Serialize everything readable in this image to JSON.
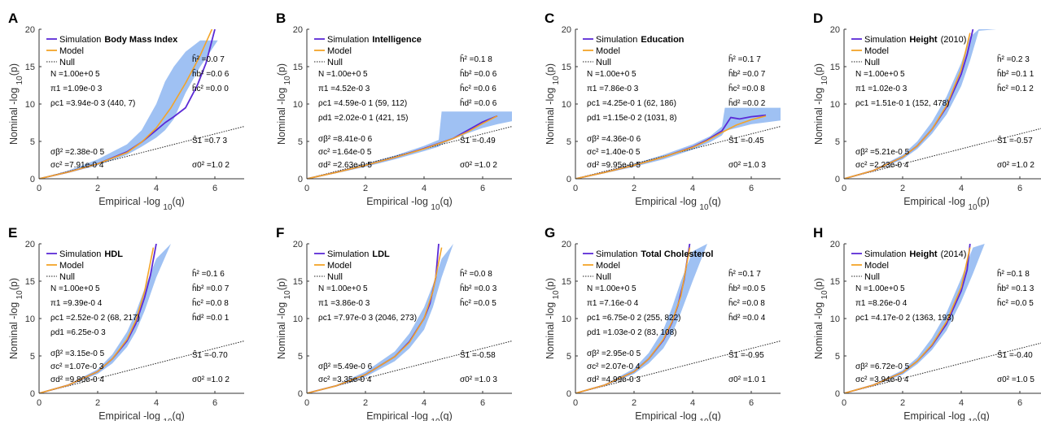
{
  "chart_data": [
    {
      "letter": "A",
      "type": "line",
      "xlim": [
        0,
        7
      ],
      "ylim": [
        0,
        20
      ],
      "xticks": [
        0,
        2,
        4,
        6
      ],
      "yticks": [
        0,
        5,
        10,
        15,
        20
      ],
      "xlabel": "Empirical -log 10(q)",
      "ylabel": "Nominal -log 10(p)",
      "legend": {
        "simulation": "Simulation",
        "trait": "Body Mass Index",
        "trait_suffix": "",
        "model": "Model",
        "null": "Null"
      },
      "left_stats": [
        "N =1.00e+0 5",
        "π1 =1.09e-0 3",
        "ρc1 =3.94e-0 3 (440, 7)",
        "σβ² =2.38e-0 5",
        "σc² =7.91e-0 4"
      ],
      "right_stats": [
        "ĥ² =0.0 7",
        "ĥb² =0.0 6",
        "ĥc² =0.0 0",
        "Ŝ1 =0.7 3",
        "σ0² =1.0 2"
      ],
      "band": {
        "x": [
          0,
          1,
          2,
          3,
          3.5,
          4,
          4.3,
          4.6,
          5,
          5.5,
          6.1,
          6.5,
          6.9
        ],
        "lower": [
          0,
          0.8,
          1.8,
          3.2,
          4.3,
          5.5,
          6.5,
          8,
          11.5,
          15,
          18.5,
          18.5,
          18.5
        ],
        "upper": [
          0,
          1.1,
          2.6,
          4.6,
          6.5,
          10,
          13,
          15,
          17,
          18.5,
          18.5,
          18.5,
          18.5
        ]
      },
      "simulation": {
        "x": [
          0,
          1,
          2,
          3,
          3.5,
          4,
          4.3,
          4.6,
          5,
          5.2,
          5.4,
          5.7,
          6
        ],
        "y": [
          0,
          0.9,
          2.0,
          3.6,
          4.9,
          6.5,
          7.5,
          8.3,
          9.5,
          11,
          12.5,
          15.5,
          20
        ]
      },
      "model": {
        "x": [
          0,
          1,
          2,
          3,
          3.5,
          4,
          4.5,
          5,
          5.5,
          5.9
        ],
        "y": [
          0,
          0.9,
          2.0,
          3.5,
          4.9,
          6.8,
          9.5,
          12.8,
          16.5,
          20
        ]
      }
    },
    {
      "letter": "B",
      "type": "line",
      "xlim": [
        0,
        7
      ],
      "ylim": [
        0,
        20
      ],
      "xticks": [
        0,
        2,
        4,
        6
      ],
      "yticks": [
        0,
        5,
        10,
        15,
        20
      ],
      "xlabel": "Empirical -log 10(q)",
      "ylabel": "Nominal -log 10(p)",
      "legend": {
        "simulation": "Simulation",
        "trait": "Intelligence",
        "trait_suffix": "",
        "model": "Model",
        "null": "Null"
      },
      "left_stats": [
        "N =1.00e+0 5",
        "π1 =4.52e-0 3",
        "ρc1 =4.59e-0 1 (59, 112)",
        "ρd1 =2.02e-0 1 (421, 15)",
        "σβ² =8.41e-0 6",
        "σc² =1.64e-0 5",
        "σd² =2.63e-0 5"
      ],
      "right_stats": [
        "ĥ² =0.1 8",
        "ĥb² =0.0 6",
        "ĥc² =0.0 6",
        "ĥd² =0.0 6",
        "Ŝ1 =-0.49",
        "σ0² =1.0 2"
      ],
      "band": {
        "x": [
          0,
          1,
          2,
          3,
          4,
          4.5,
          4.6,
          5,
          5.5,
          6,
          6.5,
          7
        ],
        "lower": [
          0,
          0.75,
          1.6,
          2.6,
          3.7,
          4.3,
          4.6,
          5.3,
          6.1,
          6.8,
          7.3,
          7.7
        ],
        "upper": [
          0,
          0.95,
          2.0,
          3.1,
          4.4,
          5.2,
          9.0,
          9.0,
          9.0,
          9.0,
          9.0,
          9.0
        ]
      },
      "simulation": {
        "x": [
          0,
          1,
          2,
          3,
          4,
          5,
          5.5,
          6,
          6.5
        ],
        "y": [
          0,
          0.85,
          1.8,
          2.85,
          4.05,
          5.4,
          6.5,
          7.6,
          8.4
        ]
      },
      "model": {
        "x": [
          0,
          1,
          2,
          3,
          4,
          5,
          5.5,
          6,
          6.5
        ],
        "y": [
          0,
          0.85,
          1.8,
          2.85,
          4.0,
          5.4,
          6.3,
          7.4,
          8.4
        ]
      }
    },
    {
      "letter": "C",
      "type": "line",
      "xlim": [
        0,
        7
      ],
      "ylim": [
        0,
        20
      ],
      "xticks": [
        0,
        2,
        4,
        6
      ],
      "yticks": [
        0,
        5,
        10,
        15,
        20
      ],
      "xlabel": "Empirical -log 10(q)",
      "ylabel": "Nominal -log 10(p)",
      "legend": {
        "simulation": "Simulation",
        "trait": "Education",
        "trait_suffix": "",
        "model": "Model",
        "null": "Null"
      },
      "left_stats": [
        "N =1.00e+0 5",
        "π1 =7.86e-0 3",
        "ρc1 =4.25e-0 1 (62, 186)",
        "ρd1 =1.15e-0 2 (1031, 8)",
        "σβ² =4.36e-0 6",
        "σc² =1.40e-0 5",
        "σd² =9.95e-0 5"
      ],
      "right_stats": [
        "ĥ² =0.1 7",
        "ĥb² =0.0 7",
        "ĥc² =0.0 8",
        "ĥd² =0.0 2",
        "Ŝ1 =-0.45",
        "σ0² =1.0 3"
      ],
      "band": {
        "x": [
          0,
          1,
          2,
          3,
          4,
          4.6,
          5,
          5.1,
          6,
          7
        ],
        "lower": [
          0,
          0.75,
          1.6,
          2.6,
          3.9,
          4.9,
          5.8,
          6.4,
          7.3,
          7.8
        ],
        "upper": [
          0,
          0.95,
          2.0,
          3.2,
          4.6,
          5.7,
          7.0,
          9.5,
          9.5,
          9.5
        ]
      },
      "simulation": {
        "x": [
          0,
          1,
          2,
          3,
          4,
          4.5,
          5,
          5.3,
          5.6,
          6,
          6.5
        ],
        "y": [
          0,
          0.85,
          1.8,
          2.9,
          4.25,
          5.2,
          6.4,
          8.2,
          8.0,
          8.3,
          8.5
        ]
      },
      "model": {
        "x": [
          0,
          1,
          2,
          3,
          4,
          4.5,
          5,
          5.5,
          6,
          6.5
        ],
        "y": [
          0,
          0.85,
          1.8,
          2.9,
          4.2,
          5.1,
          6.2,
          7.2,
          7.9,
          8.4
        ]
      }
    },
    {
      "letter": "D",
      "type": "line",
      "xlim": [
        0,
        7
      ],
      "ylim": [
        0,
        20
      ],
      "xticks": [
        0,
        2,
        4,
        6
      ],
      "yticks": [
        0,
        5,
        10,
        15,
        20
      ],
      "xlabel": "Empirical -log 10(p)",
      "ylabel": "Nominal -log 10(p)",
      "legend": {
        "simulation": "Simulation",
        "trait": "Height",
        "trait_suffix": "(2010)",
        "model": "Model",
        "null": "Null"
      },
      "left_stats": [
        "N =1.00e+0 5",
        "π1 =1.02e-0 3",
        "ρc1 =1.51e-0 1 (152, 478)",
        "σβ² =5.21e-0 5",
        "σc² =2.23e-0 4"
      ],
      "right_stats": [
        "ĥ² =0.2 3",
        "ĥb² =0.1 1",
        "ĥc² =0.1 2",
        "Ŝ1 =-0.57",
        "σ0² =1.0 2"
      ],
      "band": {
        "x": [
          0,
          1,
          2,
          2.5,
          3,
          3.5,
          4,
          4.3,
          4.6,
          5.2,
          5.3
        ],
        "lower": [
          0,
          1.0,
          2.6,
          4.0,
          6.0,
          8.6,
          12.4,
          15.8,
          19.8,
          20,
          20
        ],
        "upper": [
          0,
          1.2,
          3.2,
          5.0,
          7.6,
          11.0,
          15.5,
          19.0,
          20,
          20,
          20
        ]
      },
      "simulation": {
        "x": [
          0,
          1,
          2,
          2.5,
          3,
          3.5,
          4,
          4.2,
          4.4
        ],
        "y": [
          0,
          1.1,
          2.9,
          4.4,
          6.6,
          9.6,
          14.0,
          16.6,
          20
        ]
      },
      "model": {
        "x": [
          0,
          1,
          2,
          2.5,
          3,
          3.5,
          4,
          4.3
        ],
        "y": [
          0,
          1.1,
          2.9,
          4.4,
          6.6,
          9.8,
          14.6,
          19.5
        ]
      }
    },
    {
      "letter": "E",
      "type": "line",
      "xlim": [
        0,
        7
      ],
      "ylim": [
        0,
        20
      ],
      "xticks": [
        0,
        2,
        4,
        6
      ],
      "yticks": [
        0,
        5,
        10,
        15,
        20
      ],
      "xlabel": "Empirical -log 10(q)",
      "ylabel": "Nominal -log 10(p)",
      "legend": {
        "simulation": "Simulation",
        "trait": "HDL",
        "trait_suffix": "",
        "model": "Model",
        "null": "Null"
      },
      "left_stats": [
        "N =1.00e+0 5",
        "π1 =9.39e-0 4",
        "ρc1 =2.52e-0 2 (68, 217)",
        "ρd1 =6.25e-0 3",
        "σβ² =3.15e-0 5",
        "σc² =1.07e-0 3",
        "σd² =9.80e-0 4"
      ],
      "right_stats": [
        "ĥ² =0.1 6",
        "ĥb² =0.0 7",
        "ĥc² =0.0 8",
        "ĥd² =0.0 1",
        "Ŝ1 =-0.70",
        "σ0² =1.0 2"
      ],
      "band": {
        "x": [
          0,
          1,
          2,
          2.5,
          3,
          3.3,
          3.6,
          4,
          4.5,
          4.7
        ],
        "lower": [
          0,
          1.0,
          2.6,
          4.0,
          6.2,
          8.2,
          11.0,
          15.5,
          20,
          20
        ],
        "upper": [
          0,
          1.2,
          3.2,
          5.2,
          8.2,
          10.8,
          14.0,
          18.0,
          20,
          20
        ]
      },
      "simulation": {
        "x": [
          0,
          1,
          2,
          2.5,
          3,
          3.3,
          3.6,
          3.8,
          4.0
        ],
        "y": [
          0,
          1.1,
          2.9,
          4.6,
          7.0,
          9.3,
          12.8,
          15.8,
          20
        ]
      },
      "model": {
        "x": [
          0,
          1,
          2,
          2.5,
          3,
          3.3,
          3.6,
          3.9
        ],
        "y": [
          0,
          1.1,
          2.9,
          4.6,
          7.2,
          9.7,
          13.6,
          19.5
        ]
      }
    },
    {
      "letter": "F",
      "type": "line",
      "xlim": [
        0,
        7
      ],
      "ylim": [
        0,
        20
      ],
      "xticks": [
        0,
        2,
        4,
        6
      ],
      "yticks": [
        0,
        5,
        10,
        15,
        20
      ],
      "xlabel": "Empirical -log 10(q)",
      "ylabel": "Nominal -log 10(p)",
      "legend": {
        "simulation": "Simulation",
        "trait": "LDL",
        "trait_suffix": "",
        "model": "Model",
        "null": "Null"
      },
      "left_stats": [
        "N =1.00e+0 5",
        "π1 =3.86e-0 3",
        "ρc1 =7.97e-0 3 (2046, 273)",
        "σβ² =5.49e-0 6",
        "σc² =3.35e-0 4"
      ],
      "right_stats": [
        "ĥ² =0.0 8",
        "ĥb² =0.0 3",
        "ĥc² =0.0 5",
        "Ŝ1 =-0.58",
        "σ0² =1.0 3"
      ],
      "band": {
        "x": [
          0,
          1,
          2,
          3,
          3.5,
          4,
          4.3,
          4.6,
          5,
          5.2
        ],
        "lower": [
          0,
          0.9,
          2.2,
          4.3,
          6.0,
          8.5,
          11.5,
          15.5,
          20,
          20
        ],
        "upper": [
          0,
          1.1,
          2.9,
          5.6,
          8.0,
          11.5,
          14.5,
          18.0,
          20,
          20
        ]
      },
      "simulation": {
        "x": [
          0,
          1,
          2,
          3,
          3.5,
          4,
          4.2,
          4.4,
          4.5
        ],
        "y": [
          0,
          1.0,
          2.5,
          4.9,
          6.9,
          10.0,
          12.0,
          15.5,
          20
        ]
      },
      "model": {
        "x": [
          0,
          1,
          2,
          3,
          3.5,
          4,
          4.3,
          4.6
        ],
        "y": [
          0,
          1.0,
          2.5,
          4.9,
          6.8,
          10.0,
          13.6,
          19.5
        ]
      }
    },
    {
      "letter": "G",
      "type": "line",
      "xlim": [
        0,
        7
      ],
      "ylim": [
        0,
        20
      ],
      "xticks": [
        0,
        2,
        4,
        6
      ],
      "yticks": [
        0,
        5,
        10,
        15,
        20
      ],
      "xlabel": "Empirical -log 10(q)",
      "ylabel": "Nominal -log 10(p)",
      "legend": {
        "simulation": "Simulation",
        "trait": "Total Cholesterol",
        "trait_suffix": "",
        "model": "Model",
        "null": "Null"
      },
      "left_stats": [
        "N =1.00e+0 5",
        "π1 =7.16e-0 4",
        "ρc1 =6.75e-0 2 (255, 822)",
        "ρd1 =1.03e-0 2 (83, 108)",
        "σβ² =2.95e-0 5",
        "σc² =2.07e-0 4",
        "σd² =4.99e-0 3"
      ],
      "right_stats": [
        "ĥ² =0.1 7",
        "ĥb² =0.0 5",
        "ĥc² =0.0 8",
        "ĥd² =0.0 4",
        "Ŝ1 =-0.95",
        "σ0² =1.0 1"
      ],
      "band": {
        "x": [
          0,
          1,
          2,
          2.5,
          3,
          3.3,
          3.6,
          4,
          4.5,
          4.7
        ],
        "lower": [
          0,
          1.0,
          2.6,
          4.0,
          6.0,
          8.0,
          10.8,
          15.0,
          20,
          20
        ],
        "upper": [
          0,
          1.2,
          3.3,
          5.4,
          8.5,
          11.5,
          15.0,
          19.0,
          20,
          20
        ]
      },
      "simulation": {
        "x": [
          0,
          1,
          2,
          2.5,
          3,
          3.3,
          3.5,
          3.7,
          3.9
        ],
        "y": [
          0,
          1.1,
          2.9,
          4.6,
          7.1,
          9.5,
          11.8,
          15.0,
          20
        ]
      },
      "model": {
        "x": [
          0,
          1,
          2,
          2.5,
          3,
          3.3,
          3.6,
          3.9
        ],
        "y": [
          0,
          1.1,
          2.9,
          4.6,
          7.2,
          9.6,
          13.0,
          19.5
        ]
      }
    },
    {
      "letter": "H",
      "type": "line",
      "xlim": [
        0,
        7
      ],
      "ylim": [
        0,
        20
      ],
      "xticks": [
        0,
        2,
        4,
        6
      ],
      "yticks": [
        0,
        5,
        10,
        15,
        20
      ],
      "xlabel": "Empirical -log 10(q)",
      "ylabel": "Nominal -log 10(p)",
      "legend": {
        "simulation": "Simulation",
        "trait": "Height",
        "trait_suffix": "(2014)",
        "model": "Model",
        "null": "Null"
      },
      "left_stats": [
        "N =1.00e+0 5",
        "π1 =8.26e-0 4",
        "ρc1 =4.17e-0 2 (1363, 193)",
        "σβ² =6.72e-0 5",
        "σc² =3.94e-0 4"
      ],
      "right_stats": [
        "ĥ² =0.1 8",
        "ĥb² =0.1 3",
        "ĥc² =0.0 5",
        "Ŝ1 =-0.40",
        "σ0² =1.0 5"
      ],
      "band": {
        "x": [
          0,
          1,
          2,
          2.5,
          3,
          3.5,
          4,
          4.4,
          4.8,
          5.3,
          5.4
        ],
        "lower": [
          0,
          1.0,
          2.5,
          3.9,
          5.8,
          8.4,
          12.3,
          16.0,
          20,
          20,
          20
        ],
        "upper": [
          0,
          1.2,
          3.1,
          4.8,
          7.4,
          10.8,
          15.4,
          19.5,
          20,
          20,
          20
        ]
      },
      "simulation": {
        "x": [
          0,
          1,
          2,
          2.5,
          3,
          3.5,
          4,
          4.2,
          4.3
        ],
        "y": [
          0,
          1.1,
          2.8,
          4.3,
          6.4,
          9.3,
          13.7,
          16.5,
          20
        ]
      },
      "model": {
        "x": [
          0,
          1,
          2,
          2.5,
          3,
          3.5,
          4,
          4.3
        ],
        "y": [
          0,
          1.1,
          2.8,
          4.3,
          6.5,
          9.6,
          14.2,
          19.5
        ]
      }
    }
  ],
  "colors": {
    "band": "#9fc1f3",
    "simulation": "#5b2ad6",
    "model": "#f3a428",
    "null": "#222222",
    "axis": "#333333"
  }
}
